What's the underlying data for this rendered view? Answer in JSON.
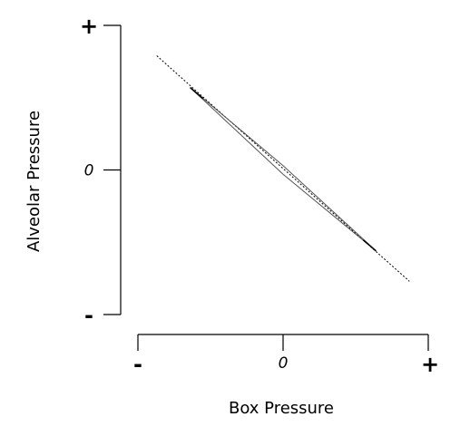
{
  "chart_data": {
    "type": "line",
    "title": "",
    "xlabel": "Box Pressure",
    "ylabel": "Alveolar Pressure",
    "xticks": [
      {
        "value": -1,
        "label": "-"
      },
      {
        "value": 0,
        "label": "0"
      },
      {
        "value": 1,
        "label": "+"
      }
    ],
    "yticks": [
      {
        "value": 1,
        "label": "+"
      },
      {
        "value": 0,
        "label": "0"
      },
      {
        "value": -1,
        "label": "-"
      }
    ],
    "xlim": [
      -1,
      1
    ],
    "ylim": [
      -1,
      1
    ],
    "grid": false,
    "series": [
      {
        "style": "dotted",
        "color": "#000000",
        "points": [
          [
            -0.87,
            0.79
          ],
          [
            0.87,
            -0.77
          ]
        ]
      },
      {
        "style": "loop",
        "color": "#555555",
        "upper": [
          [
            -0.64,
            0.57
          ],
          [
            0.0,
            0.03
          ],
          [
            0.64,
            -0.56
          ]
        ],
        "lower": [
          [
            -0.64,
            0.57
          ],
          [
            0.0,
            -0.03
          ],
          [
            0.64,
            -0.56
          ]
        ]
      }
    ]
  }
}
